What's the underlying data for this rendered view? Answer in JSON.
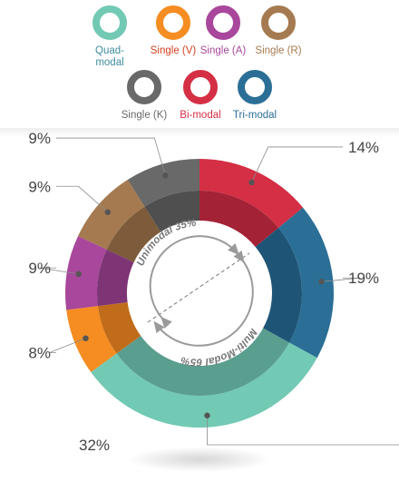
{
  "legend": [
    {
      "label": "Quad-\nmodal",
      "color": "#72c9b4",
      "text_color": "#3f8da0"
    },
    {
      "label": "Single (V)",
      "color": "#f58d22",
      "text_color": "#d9401f"
    },
    {
      "label": "Single (A)",
      "color": "#a8479b",
      "text_color": "#a8479b"
    },
    {
      "label": "Single (R)",
      "color": "#a57a50",
      "text_color": "#a57a50"
    },
    {
      "label": "Single (K)",
      "color": "#696969",
      "text_color": "#696969"
    },
    {
      "label": "Bi-modal",
      "color": "#d42f44",
      "text_color": "#d42f44"
    },
    {
      "label": "Tri-modal",
      "color": "#2b6f96",
      "text_color": "#2b6f96"
    }
  ],
  "chart_data": {
    "type": "pie",
    "title": "",
    "outer_ring": [
      {
        "name": "Bi-modal",
        "label": "14%",
        "value": 14,
        "color": "#d42f44",
        "inner_color": "#a42236"
      },
      {
        "name": "Tri-modal",
        "label": "19%",
        "value": 19,
        "color": "#2b6f96",
        "inner_color": "#1e5577"
      },
      {
        "name": "Quad-modal",
        "label": "32%",
        "value": 32,
        "color": "#72c9b4",
        "inner_color": "#5a9e8f"
      },
      {
        "name": "Single (V)",
        "label": "8%",
        "value": 8,
        "color": "#f58d22",
        "inner_color": "#c06c1a"
      },
      {
        "name": "Single (A)",
        "label": "9%",
        "value": 9,
        "color": "#a8479b",
        "inner_color": "#7e3575"
      },
      {
        "name": "Single (R)",
        "label": "9%",
        "value": 9,
        "color": "#a57a50",
        "inner_color": "#7d5b3b"
      },
      {
        "name": "Single (K)",
        "label": "9%",
        "value": 9,
        "color": "#696969",
        "inner_color": "#4f4f4f"
      }
    ],
    "inner_groups": [
      {
        "label": "Unimodal 35%",
        "value": 35
      },
      {
        "label": "Multi-Modal 65%",
        "value": 65
      }
    ]
  }
}
